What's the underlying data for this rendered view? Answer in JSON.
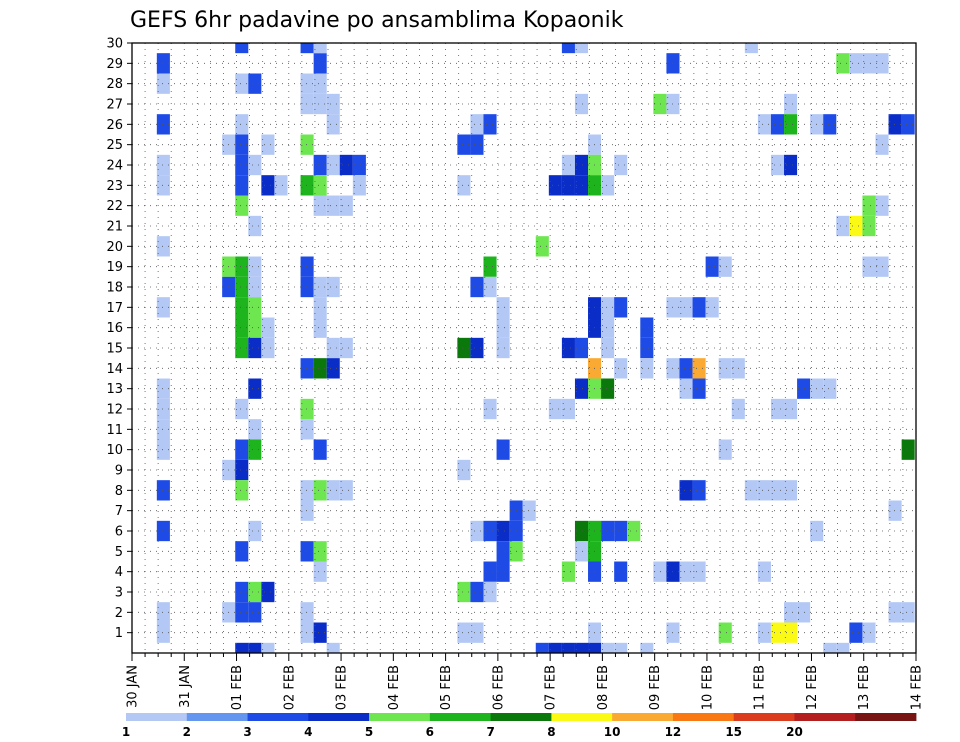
{
  "chart_data": {
    "type": "heatmap",
    "title": "GEFS 6hr padavine po ansamblima Kopaonik",
    "xlabel": "",
    "ylabel": "",
    "x_ticks": [
      "30 JAN",
      "31 JAN",
      "01 FEB",
      "02 FEB",
      "03 FEB",
      "04 FEB",
      "05 FEB",
      "06 FEB",
      "07 FEB",
      "08 FEB",
      "09 FEB",
      "10 FEB",
      "11 FEB",
      "12 FEB",
      "13 FEB",
      "14 FEB"
    ],
    "y_ticks": [
      "1",
      "2",
      "3",
      "4",
      "5",
      "6",
      "7",
      "8",
      "9",
      "10",
      "11",
      "12",
      "13",
      "14",
      "15",
      "16",
      "17",
      "18",
      "19",
      "20",
      "21",
      "22",
      "23",
      "24",
      "25",
      "26",
      "27",
      "28",
      "29",
      "30"
    ],
    "xlim_days": [
      0,
      15
    ],
    "ylim": [
      0,
      30
    ],
    "steps_per_day": 4,
    "grid": true,
    "colorbar": {
      "levels": [
        "1",
        "2",
        "3",
        "4",
        "5",
        "6",
        "7",
        "8",
        "10",
        "12",
        "15",
        "20"
      ],
      "colors": [
        "#b4c8f5",
        "#6496f0",
        "#1e4be6",
        "#0a2dc8",
        "#6ee650",
        "#1eb41e",
        "#0a780a",
        "#fafa14",
        "#faaa32",
        "#fa7814",
        "#dc3c1e",
        "#b41e1e",
        "#781414"
      ]
    },
    "points": [
      {
        "d": 0.6,
        "m": 29,
        "v": 3
      },
      {
        "d": 0.6,
        "m": 28,
        "v": 1
      },
      {
        "d": 0.6,
        "m": 26,
        "v": 3
      },
      {
        "d": 0.6,
        "m": 24,
        "v": 1
      },
      {
        "d": 0.6,
        "m": 23,
        "v": 1
      },
      {
        "d": 0.6,
        "m": 20,
        "v": 1
      },
      {
        "d": 0.6,
        "m": 17,
        "v": 1
      },
      {
        "d": 0.6,
        "m": 13,
        "v": 1
      },
      {
        "d": 0.6,
        "m": 12,
        "v": 1
      },
      {
        "d": 0.6,
        "m": 11,
        "v": 1
      },
      {
        "d": 0.6,
        "m": 10,
        "v": 1
      },
      {
        "d": 0.6,
        "m": 8,
        "v": 3
      },
      {
        "d": 0.6,
        "m": 6,
        "v": 3
      },
      {
        "d": 0.6,
        "m": 2,
        "v": 1
      },
      {
        "d": 0.6,
        "m": 1,
        "v": 1
      },
      {
        "d": 1.85,
        "m": 25,
        "v": 1
      },
      {
        "d": 1.85,
        "m": 19,
        "v": 5
      },
      {
        "d": 1.85,
        "m": 18,
        "v": 3
      },
      {
        "d": 1.85,
        "m": 9,
        "v": 1
      },
      {
        "d": 1.85,
        "m": 2,
        "v": 1
      },
      {
        "d": 2.1,
        "m": 30,
        "v": 3
      },
      {
        "d": 2.1,
        "m": 28,
        "v": 1
      },
      {
        "d": 2.1,
        "m": 26,
        "v": 1
      },
      {
        "d": 2.1,
        "m": 25,
        "v": 3
      },
      {
        "d": 2.1,
        "m": 24,
        "v": 3
      },
      {
        "d": 2.1,
        "m": 23,
        "v": 3
      },
      {
        "d": 2.1,
        "m": 22,
        "v": 5
      },
      {
        "d": 2.1,
        "m": 19,
        "v": 6
      },
      {
        "d": 2.1,
        "m": 18,
        "v": 6
      },
      {
        "d": 2.1,
        "m": 17,
        "v": 6
      },
      {
        "d": 2.1,
        "m": 16,
        "v": 6
      },
      {
        "d": 2.1,
        "m": 15,
        "v": 6
      },
      {
        "d": 2.1,
        "m": 12,
        "v": 1
      },
      {
        "d": 2.1,
        "m": 10,
        "v": 3
      },
      {
        "d": 2.1,
        "m": 9,
        "v": 4
      },
      {
        "d": 2.1,
        "m": 8,
        "v": 5
      },
      {
        "d": 2.1,
        "m": 5,
        "v": 3
      },
      {
        "d": 2.1,
        "m": 3,
        "v": 3
      },
      {
        "d": 2.1,
        "m": 2,
        "v": 3
      },
      {
        "d": 2.1,
        "m": 0,
        "v": 4
      },
      {
        "d": 2.35,
        "m": 28,
        "v": 3
      },
      {
        "d": 2.35,
        "m": 24,
        "v": 1
      },
      {
        "d": 2.35,
        "m": 21,
        "v": 1
      },
      {
        "d": 2.35,
        "m": 19,
        "v": 1
      },
      {
        "d": 2.35,
        "m": 18,
        "v": 1
      },
      {
        "d": 2.35,
        "m": 17,
        "v": 5
      },
      {
        "d": 2.35,
        "m": 16,
        "v": 5
      },
      {
        "d": 2.35,
        "m": 15,
        "v": 4
      },
      {
        "d": 2.35,
        "m": 13,
        "v": 4
      },
      {
        "d": 2.35,
        "m": 11,
        "v": 1
      },
      {
        "d": 2.35,
        "m": 10,
        "v": 6
      },
      {
        "d": 2.35,
        "m": 6,
        "v": 1
      },
      {
        "d": 2.35,
        "m": 3,
        "v": 5
      },
      {
        "d": 2.35,
        "m": 2,
        "v": 3
      },
      {
        "d": 2.35,
        "m": 0,
        "v": 4
      },
      {
        "d": 2.6,
        "m": 25,
        "v": 1
      },
      {
        "d": 2.6,
        "m": 23,
        "v": 4
      },
      {
        "d": 2.6,
        "m": 16,
        "v": 1
      },
      {
        "d": 2.6,
        "m": 15,
        "v": 1
      },
      {
        "d": 2.6,
        "m": 3,
        "v": 4
      },
      {
        "d": 2.6,
        "m": 0,
        "v": 1
      },
      {
        "d": 2.85,
        "m": 23,
        "v": 1
      },
      {
        "d": 3.35,
        "m": 28,
        "v": 1
      },
      {
        "d": 3.35,
        "m": 27,
        "v": 1
      },
      {
        "d": 3.35,
        "m": 25,
        "v": 5
      },
      {
        "d": 3.35,
        "m": 23,
        "v": 6
      },
      {
        "d": 3.35,
        "m": 19,
        "v": 3
      },
      {
        "d": 3.35,
        "m": 18,
        "v": 3
      },
      {
        "d": 3.35,
        "m": 14,
        "v": 3
      },
      {
        "d": 3.35,
        "m": 12,
        "v": 5
      },
      {
        "d": 3.35,
        "m": 11,
        "v": 1
      },
      {
        "d": 3.35,
        "m": 8,
        "v": 1
      },
      {
        "d": 3.35,
        "m": 7,
        "v": 1
      },
      {
        "d": 3.35,
        "m": 5,
        "v": 3
      },
      {
        "d": 3.35,
        "m": 2,
        "v": 1
      },
      {
        "d": 3.35,
        "m": 1,
        "v": 1
      },
      {
        "d": 3.35,
        "m": 30,
        "v": 3
      },
      {
        "d": 3.6,
        "m": 29,
        "v": 3
      },
      {
        "d": 3.6,
        "m": 28,
        "v": 1
      },
      {
        "d": 3.6,
        "m": 27,
        "v": 1
      },
      {
        "d": 3.6,
        "m": 24,
        "v": 3
      },
      {
        "d": 3.6,
        "m": 23,
        "v": 5
      },
      {
        "d": 3.6,
        "m": 22,
        "v": 1
      },
      {
        "d": 3.6,
        "m": 18,
        "v": 1
      },
      {
        "d": 3.6,
        "m": 17,
        "v": 1
      },
      {
        "d": 3.6,
        "m": 16,
        "v": 1
      },
      {
        "d": 3.6,
        "m": 14,
        "v": 7
      },
      {
        "d": 3.6,
        "m": 10,
        "v": 3
      },
      {
        "d": 3.6,
        "m": 8,
        "v": 5
      },
      {
        "d": 3.6,
        "m": 5,
        "v": 5
      },
      {
        "d": 3.6,
        "m": 4,
        "v": 1
      },
      {
        "d": 3.6,
        "m": 1,
        "v": 4
      },
      {
        "d": 3.6,
        "m": 30,
        "v": 1
      },
      {
        "d": 3.85,
        "m": 27,
        "v": 1
      },
      {
        "d": 3.85,
        "m": 26,
        "v": 1
      },
      {
        "d": 3.85,
        "m": 24,
        "v": 1
      },
      {
        "d": 3.85,
        "m": 22,
        "v": 1
      },
      {
        "d": 3.85,
        "m": 18,
        "v": 1
      },
      {
        "d": 3.85,
        "m": 15,
        "v": 1
      },
      {
        "d": 3.85,
        "m": 14,
        "v": 4
      },
      {
        "d": 3.85,
        "m": 8,
        "v": 1
      },
      {
        "d": 3.85,
        "m": 0,
        "v": 1
      },
      {
        "d": 4.1,
        "m": 24,
        "v": 4
      },
      {
        "d": 4.1,
        "m": 22,
        "v": 1
      },
      {
        "d": 4.1,
        "m": 15,
        "v": 1
      },
      {
        "d": 4.1,
        "m": 8,
        "v": 1
      },
      {
        "d": 4.35,
        "m": 24,
        "v": 3
      },
      {
        "d": 4.35,
        "m": 23,
        "v": 1
      },
      {
        "d": 6.35,
        "m": 25,
        "v": 3
      },
      {
        "d": 6.35,
        "m": 23,
        "v": 1
      },
      {
        "d": 6.35,
        "m": 15,
        "v": 7
      },
      {
        "d": 6.35,
        "m": 9,
        "v": 1
      },
      {
        "d": 6.35,
        "m": 3,
        "v": 5
      },
      {
        "d": 6.35,
        "m": 1,
        "v": 1
      },
      {
        "d": 6.6,
        "m": 26,
        "v": 1
      },
      {
        "d": 6.6,
        "m": 25,
        "v": 3
      },
      {
        "d": 6.6,
        "m": 18,
        "v": 3
      },
      {
        "d": 6.6,
        "m": 15,
        "v": 4
      },
      {
        "d": 6.6,
        "m": 6,
        "v": 1
      },
      {
        "d": 6.6,
        "m": 3,
        "v": 3
      },
      {
        "d": 6.6,
        "m": 1,
        "v": 1
      },
      {
        "d": 6.85,
        "m": 26,
        "v": 3
      },
      {
        "d": 6.85,
        "m": 19,
        "v": 6
      },
      {
        "d": 6.85,
        "m": 18,
        "v": 1
      },
      {
        "d": 6.85,
        "m": 12,
        "v": 1
      },
      {
        "d": 6.85,
        "m": 6,
        "v": 3
      },
      {
        "d": 6.85,
        "m": 4,
        "v": 3
      },
      {
        "d": 6.85,
        "m": 3,
        "v": 1
      },
      {
        "d": 7.1,
        "m": 17,
        "v": 1
      },
      {
        "d": 7.1,
        "m": 16,
        "v": 1
      },
      {
        "d": 7.1,
        "m": 15,
        "v": 1
      },
      {
        "d": 7.1,
        "m": 10,
        "v": 3
      },
      {
        "d": 7.1,
        "m": 6,
        "v": 4
      },
      {
        "d": 7.1,
        "m": 5,
        "v": 3
      },
      {
        "d": 7.1,
        "m": 4,
        "v": 3
      },
      {
        "d": 7.35,
        "m": 7,
        "v": 3
      },
      {
        "d": 7.35,
        "m": 6,
        "v": 3
      },
      {
        "d": 7.35,
        "m": 5,
        "v": 5
      },
      {
        "d": 7.6,
        "m": 7,
        "v": 1
      },
      {
        "d": 7.85,
        "m": 20,
        "v": 5
      },
      {
        "d": 7.85,
        "m": 0,
        "v": 3
      },
      {
        "d": 8.1,
        "m": 12,
        "v": 1
      },
      {
        "d": 8.1,
        "m": 0,
        "v": 4
      },
      {
        "d": 8.1,
        "m": 23,
        "v": 4
      },
      {
        "d": 8.35,
        "m": 24,
        "v": 1
      },
      {
        "d": 8.35,
        "m": 23,
        "v": 4
      },
      {
        "d": 8.35,
        "m": 15,
        "v": 4
      },
      {
        "d": 8.35,
        "m": 12,
        "v": 1
      },
      {
        "d": 8.35,
        "m": 4,
        "v": 5
      },
      {
        "d": 8.35,
        "m": 30,
        "v": 3
      },
      {
        "d": 8.35,
        "m": 0,
        "v": 4
      },
      {
        "d": 8.6,
        "m": 27,
        "v": 1
      },
      {
        "d": 8.6,
        "m": 24,
        "v": 4
      },
      {
        "d": 8.6,
        "m": 23,
        "v": 4
      },
      {
        "d": 8.6,
        "m": 15,
        "v": 3
      },
      {
        "d": 8.6,
        "m": 13,
        "v": 4
      },
      {
        "d": 8.6,
        "m": 6,
        "v": 7
      },
      {
        "d": 8.6,
        "m": 5,
        "v": 1
      },
      {
        "d": 8.6,
        "m": 30,
        "v": 1
      },
      {
        "d": 8.6,
        "m": 0,
        "v": 4
      },
      {
        "d": 8.85,
        "m": 25,
        "v": 1
      },
      {
        "d": 8.85,
        "m": 24,
        "v": 5
      },
      {
        "d": 8.85,
        "m": 23,
        "v": 6
      },
      {
        "d": 8.85,
        "m": 17,
        "v": 4
      },
      {
        "d": 8.85,
        "m": 16,
        "v": 4
      },
      {
        "d": 8.85,
        "m": 14,
        "v": 9
      },
      {
        "d": 8.85,
        "m": 13,
        "v": 5
      },
      {
        "d": 8.85,
        "m": 6,
        "v": 6
      },
      {
        "d": 8.85,
        "m": 5,
        "v": 6
      },
      {
        "d": 8.85,
        "m": 4,
        "v": 3
      },
      {
        "d": 8.85,
        "m": 1,
        "v": 1
      },
      {
        "d": 8.85,
        "m": 0,
        "v": 4
      },
      {
        "d": 9.1,
        "m": 23,
        "v": 1
      },
      {
        "d": 9.1,
        "m": 17,
        "v": 1
      },
      {
        "d": 9.1,
        "m": 16,
        "v": 1
      },
      {
        "d": 9.1,
        "m": 15,
        "v": 1
      },
      {
        "d": 9.1,
        "m": 13,
        "v": 7
      },
      {
        "d": 9.1,
        "m": 6,
        "v": 3
      },
      {
        "d": 9.1,
        "m": 0,
        "v": 1
      },
      {
        "d": 9.35,
        "m": 24,
        "v": 1
      },
      {
        "d": 9.35,
        "m": 17,
        "v": 3
      },
      {
        "d": 9.35,
        "m": 14,
        "v": 1
      },
      {
        "d": 9.35,
        "m": 6,
        "v": 3
      },
      {
        "d": 9.35,
        "m": 4,
        "v": 3
      },
      {
        "d": 9.35,
        "m": 0,
        "v": 1
      },
      {
        "d": 9.6,
        "m": 6,
        "v": 5
      },
      {
        "d": 9.85,
        "m": 16,
        "v": 3
      },
      {
        "d": 9.85,
        "m": 15,
        "v": 3
      },
      {
        "d": 9.85,
        "m": 14,
        "v": 1
      },
      {
        "d": 9.85,
        "m": 0,
        "v": 1
      },
      {
        "d": 10.1,
        "m": 27,
        "v": 5
      },
      {
        "d": 10.1,
        "m": 4,
        "v": 1
      },
      {
        "d": 10.35,
        "m": 29,
        "v": 3
      },
      {
        "d": 10.35,
        "m": 27,
        "v": 1
      },
      {
        "d": 10.35,
        "m": 17,
        "v": 1
      },
      {
        "d": 10.35,
        "m": 14,
        "v": 1
      },
      {
        "d": 10.35,
        "m": 4,
        "v": 4
      },
      {
        "d": 10.35,
        "m": 1,
        "v": 1
      },
      {
        "d": 10.6,
        "m": 17,
        "v": 1
      },
      {
        "d": 10.6,
        "m": 14,
        "v": 3
      },
      {
        "d": 10.6,
        "m": 13,
        "v": 1
      },
      {
        "d": 10.6,
        "m": 8,
        "v": 4
      },
      {
        "d": 10.6,
        "m": 4,
        "v": 1
      },
      {
        "d": 10.85,
        "m": 17,
        "v": 3
      },
      {
        "d": 10.85,
        "m": 14,
        "v": 9
      },
      {
        "d": 10.85,
        "m": 13,
        "v": 3
      },
      {
        "d": 10.85,
        "m": 8,
        "v": 3
      },
      {
        "d": 10.85,
        "m": 4,
        "v": 1
      },
      {
        "d": 11.1,
        "m": 19,
        "v": 3
      },
      {
        "d": 11.1,
        "m": 17,
        "v": 1
      },
      {
        "d": 11.35,
        "m": 19,
        "v": 1
      },
      {
        "d": 11.35,
        "m": 14,
        "v": 1
      },
      {
        "d": 11.35,
        "m": 10,
        "v": 1
      },
      {
        "d": 11.35,
        "m": 1,
        "v": 5
      },
      {
        "d": 11.6,
        "m": 14,
        "v": 1
      },
      {
        "d": 11.6,
        "m": 12,
        "v": 1
      },
      {
        "d": 11.85,
        "m": 30,
        "v": 1
      },
      {
        "d": 11.85,
        "m": 8,
        "v": 1
      },
      {
        "d": 12.1,
        "m": 26,
        "v": 1
      },
      {
        "d": 12.1,
        "m": 8,
        "v": 1
      },
      {
        "d": 12.1,
        "m": 4,
        "v": 1
      },
      {
        "d": 12.1,
        "m": 1,
        "v": 1
      },
      {
        "d": 12.35,
        "m": 26,
        "v": 3
      },
      {
        "d": 12.35,
        "m": 24,
        "v": 1
      },
      {
        "d": 12.35,
        "m": 12,
        "v": 1
      },
      {
        "d": 12.35,
        "m": 8,
        "v": 1
      },
      {
        "d": 12.35,
        "m": 1,
        "v": 8
      },
      {
        "d": 12.6,
        "m": 27,
        "v": 1
      },
      {
        "d": 12.6,
        "m": 26,
        "v": 6
      },
      {
        "d": 12.6,
        "m": 24,
        "v": 4
      },
      {
        "d": 12.6,
        "m": 12,
        "v": 1
      },
      {
        "d": 12.6,
        "m": 8,
        "v": 1
      },
      {
        "d": 12.6,
        "m": 2,
        "v": 1
      },
      {
        "d": 12.6,
        "m": 1,
        "v": 8
      },
      {
        "d": 12.85,
        "m": 13,
        "v": 3
      },
      {
        "d": 12.85,
        "m": 2,
        "v": 1
      },
      {
        "d": 13.1,
        "m": 26,
        "v": 1
      },
      {
        "d": 13.1,
        "m": 13,
        "v": 1
      },
      {
        "d": 13.1,
        "m": 6,
        "v": 1
      },
      {
        "d": 13.35,
        "m": 26,
        "v": 3
      },
      {
        "d": 13.35,
        "m": 13,
        "v": 1
      },
      {
        "d": 13.35,
        "m": 0,
        "v": 1
      },
      {
        "d": 13.6,
        "m": 29,
        "v": 5
      },
      {
        "d": 13.6,
        "m": 21,
        "v": 1
      },
      {
        "d": 13.6,
        "m": 0,
        "v": 1
      },
      {
        "d": 13.85,
        "m": 29,
        "v": 1
      },
      {
        "d": 13.85,
        "m": 21,
        "v": 8
      },
      {
        "d": 13.85,
        "m": 1,
        "v": 3
      },
      {
        "d": 14.1,
        "m": 29,
        "v": 1
      },
      {
        "d": 14.1,
        "m": 22,
        "v": 5
      },
      {
        "d": 14.1,
        "m": 21,
        "v": 5
      },
      {
        "d": 14.1,
        "m": 19,
        "v": 1
      },
      {
        "d": 14.1,
        "m": 1,
        "v": 1
      },
      {
        "d": 14.35,
        "m": 29,
        "v": 1
      },
      {
        "d": 14.35,
        "m": 25,
        "v": 1
      },
      {
        "d": 14.35,
        "m": 22,
        "v": 1
      },
      {
        "d": 14.35,
        "m": 19,
        "v": 1
      },
      {
        "d": 14.6,
        "m": 26,
        "v": 4
      },
      {
        "d": 14.6,
        "m": 7,
        "v": 1
      },
      {
        "d": 14.6,
        "m": 2,
        "v": 1
      },
      {
        "d": 14.85,
        "m": 26,
        "v": 3
      },
      {
        "d": 14.85,
        "m": 10,
        "v": 7
      },
      {
        "d": 14.85,
        "m": 2,
        "v": 1
      }
    ]
  }
}
